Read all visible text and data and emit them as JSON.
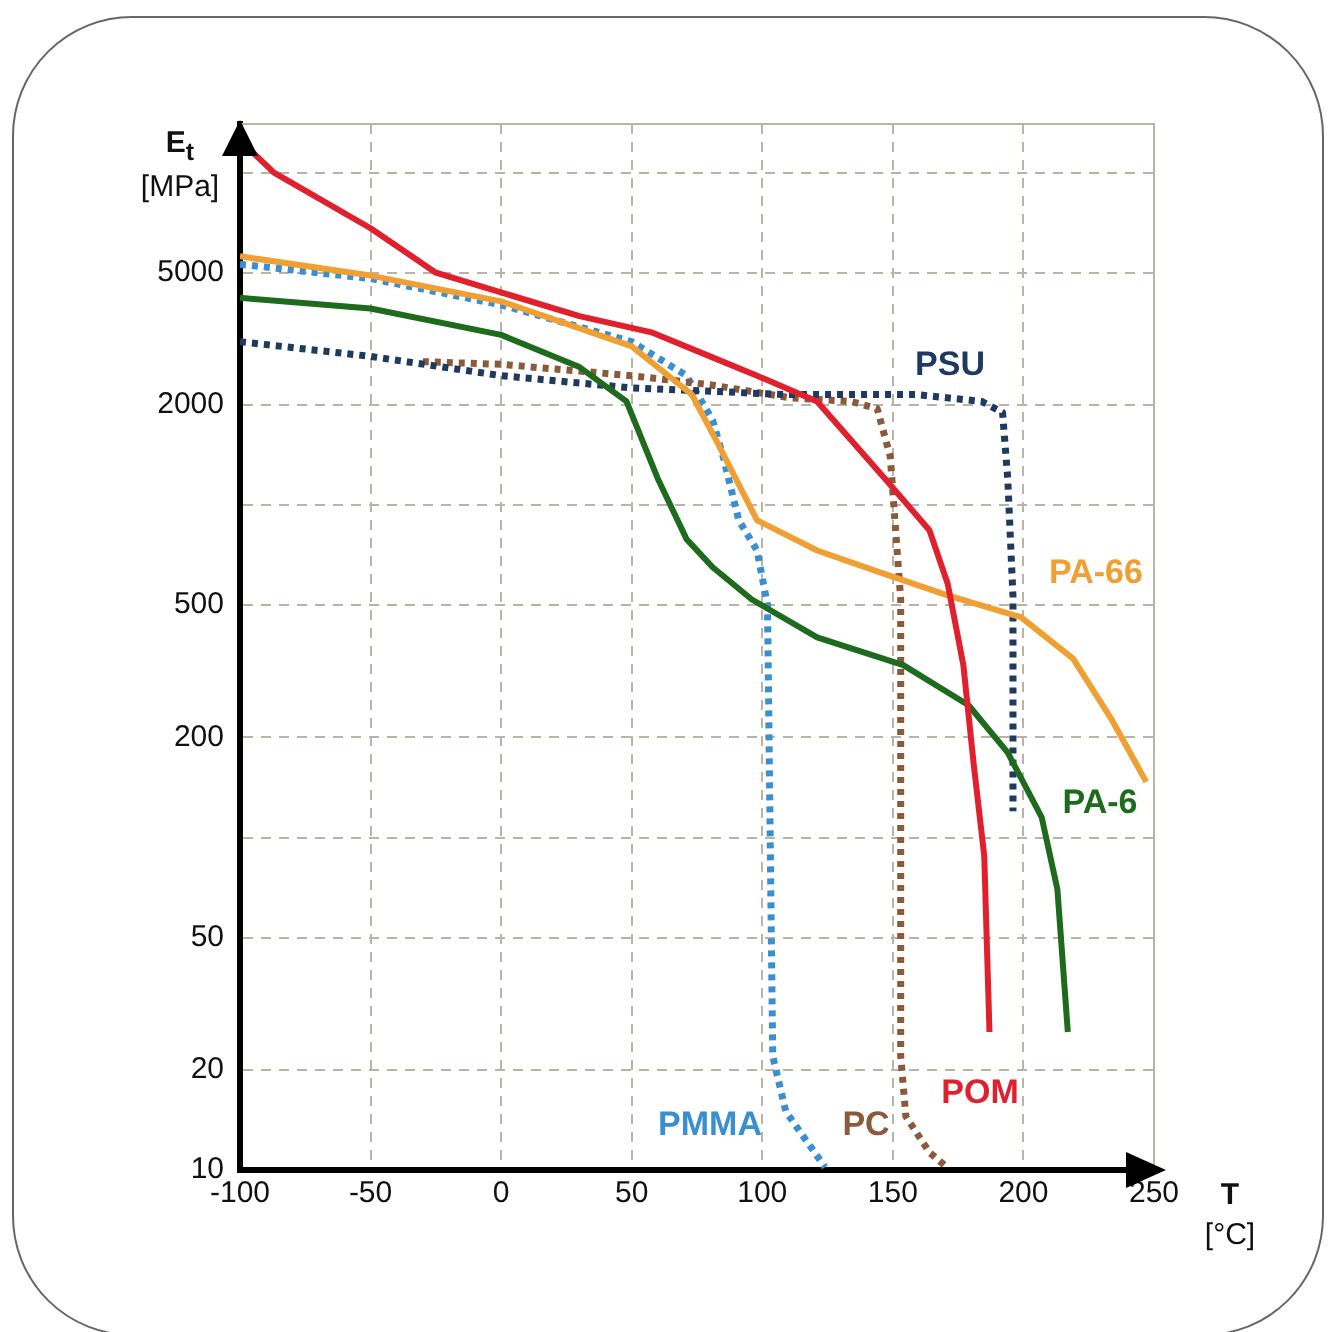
{
  "chart_data": {
    "type": "line",
    "xlabel": "T [°C]",
    "ylabel": "E$_{t}$ [MPa]",
    "log": "y",
    "grid": true,
    "legend": false,
    "marker": "none",
    "xlim": [
      -100,
      250
    ],
    "xticks": [
      -100,
      -50,
      0,
      50,
      100,
      150,
      200,
      250
    ],
    "ylim": [
      10,
      14000
    ],
    "yticks": [
      10,
      20,
      50,
      {
        "value": 100,
        "label": null
      },
      200,
      500,
      {
        "value": 1000,
        "label": null
      },
      2000,
      5000,
      {
        "value": 10000,
        "label": null
      }
    ],
    "series": [
      {
        "name": "POM",
        "color": "#e0202c",
        "line_style": "solid",
        "x": [
          -100,
          -87,
          -50,
          -25,
          30,
          58,
          80,
          98,
          121,
          147,
          164,
          171,
          177,
          181,
          185,
          187
        ],
        "values": [
          12500,
          10000,
          6800,
          5000,
          3700,
          3300,
          2800,
          2450,
          2050,
          1200,
          840,
          580,
          330,
          165,
          88,
          26
        ]
      },
      {
        "name": "PA-66",
        "color": "#f0a033",
        "line_style": "solid",
        "x": [
          -100,
          -50,
          0,
          50,
          73,
          83,
          98,
          121,
          147,
          171,
          199,
          219,
          234,
          247
        ],
        "values": [
          5600,
          4900,
          4100,
          3000,
          2150,
          1530,
          900,
          730,
          620,
          535,
          460,
          345,
          225,
          147
        ]
      },
      {
        "name": "PA-6",
        "color": "#1e6b1e",
        "line_style": "solid",
        "x": [
          -100,
          -50,
          0,
          30,
          48,
          60,
          71,
          81,
          96,
          121,
          154,
          179,
          194,
          207,
          213,
          217
        ],
        "values": [
          4200,
          3900,
          3250,
          2600,
          2050,
          1200,
          790,
          650,
          520,
          400,
          330,
          250,
          180,
          115,
          70,
          26
        ]
      },
      {
        "name": "PSU",
        "color": "#1f3a5f",
        "line_style": "dotted",
        "x": [
          -100,
          -50,
          0,
          50,
          109,
          159,
          184,
          192,
          194,
          196,
          196
        ],
        "values": [
          3100,
          2800,
          2450,
          2250,
          2150,
          2150,
          2050,
          1900,
          1200,
          530,
          120
        ]
      },
      {
        "name": "PC",
        "color": "#8b5a3c",
        "line_style": "dotted",
        "x": [
          -30,
          0,
          50,
          80,
          111,
          134,
          144,
          149,
          153,
          153,
          155,
          164,
          170
        ],
        "values": [
          2700,
          2650,
          2450,
          2300,
          2100,
          2050,
          1950,
          1400,
          520,
          22,
          14.5,
          11.3,
          10.3
        ]
      },
      {
        "name": "PMMA",
        "color": "#3a8fd0",
        "line_style": "dotted",
        "x": [
          -100,
          -50,
          0,
          50,
          71,
          81,
          85,
          91,
          98,
          102,
          104,
          109,
          124
        ],
        "values": [
          5300,
          4800,
          4000,
          3100,
          2450,
          1800,
          1400,
          900,
          730,
          500,
          22,
          15,
          10.2
        ]
      }
    ]
  }
}
